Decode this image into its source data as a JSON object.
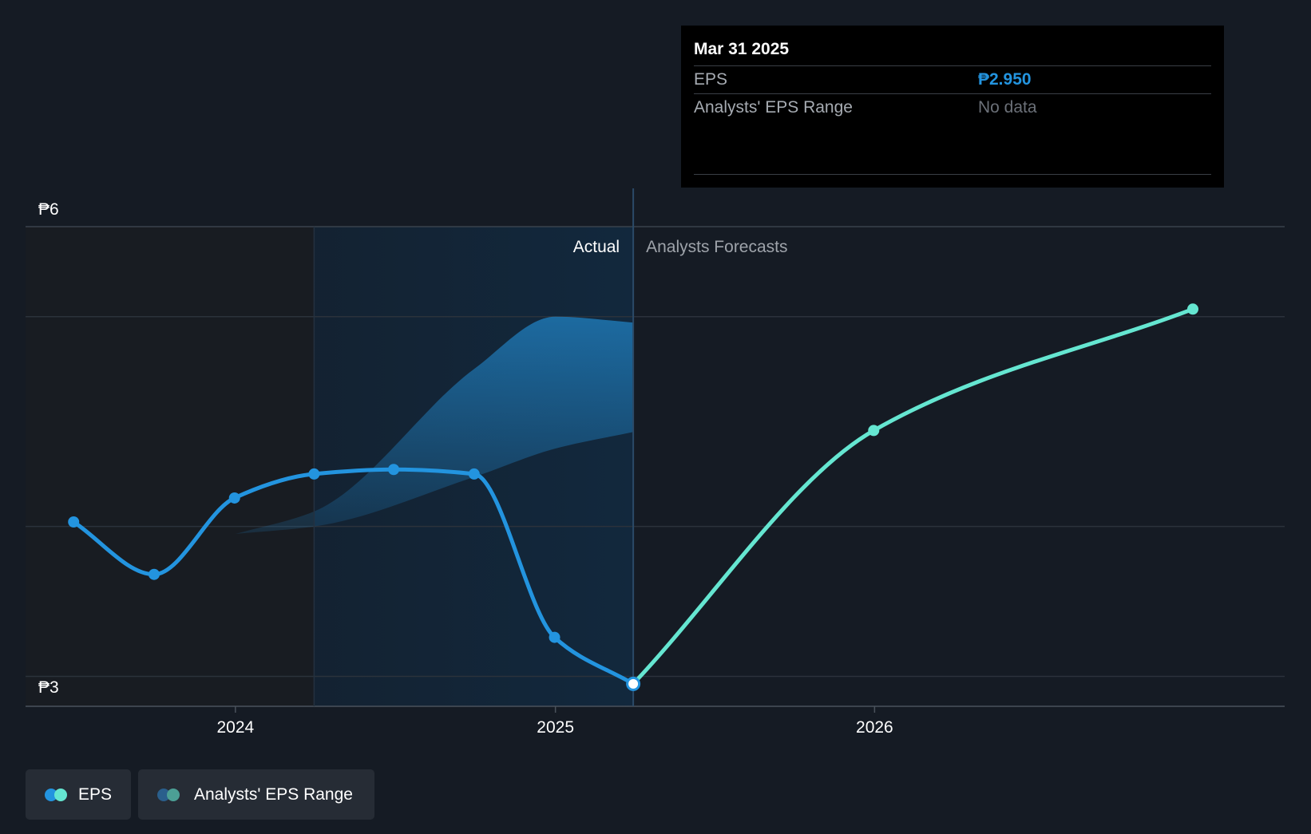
{
  "colors": {
    "background": "#151b24",
    "eps_actual": "#2394df",
    "eps_forecast": "#65e6d1",
    "range_fill": "#2394df",
    "grid": "#2b323b",
    "past_shade": "#12171e",
    "actual_shade": "#0f2234"
  },
  "tooltip": {
    "date": "Mar 31 2025",
    "rows": [
      {
        "label": "EPS",
        "value": "₱2.950"
      },
      {
        "label": "Analysts' EPS Range",
        "value": "No data"
      }
    ]
  },
  "regions": {
    "actual_label": "Actual",
    "forecast_label": "Analysts Forecasts"
  },
  "legend": [
    {
      "label": "EPS",
      "icon": "eps-legend-dots"
    },
    {
      "label": "Analysts' EPS Range",
      "icon": "range-legend-dots"
    }
  ],
  "chart_data": {
    "type": "line",
    "title": "",
    "xlabel": "",
    "ylabel": "",
    "y_ticks": [
      {
        "value": 6,
        "label": "₱6"
      },
      {
        "value": 3,
        "label": "₱3"
      }
    ],
    "x_ticks": [
      {
        "value": "2024-01-01",
        "label": "2024"
      },
      {
        "value": "2025-01-01",
        "label": "2025"
      },
      {
        "value": "2026-01-01",
        "label": "2026"
      }
    ],
    "xlim": [
      "2023-05-06",
      "2027-04-15"
    ],
    "ylim": [
      2.8,
      6.0
    ],
    "grid": true,
    "highlight_date": "2025-03-31",
    "actual_region_start": "2024-03-31",
    "series": [
      {
        "name": "EPS",
        "segment": "actual",
        "points": [
          {
            "x": "2023-06-30",
            "y": 4.03
          },
          {
            "x": "2023-09-30",
            "y": 3.68
          },
          {
            "x": "2023-12-31",
            "y": 4.19
          },
          {
            "x": "2024-03-31",
            "y": 4.35
          },
          {
            "x": "2024-06-30",
            "y": 4.38
          },
          {
            "x": "2024-09-30",
            "y": 4.35
          },
          {
            "x": "2024-12-31",
            "y": 3.26
          },
          {
            "x": "2025-03-31",
            "y": 2.95
          }
        ]
      },
      {
        "name": "EPS",
        "segment": "forecast",
        "points": [
          {
            "x": "2025-03-31",
            "y": 2.95
          },
          {
            "x": "2025-12-31",
            "y": 4.64
          },
          {
            "x": "2026-12-31",
            "y": 5.45
          }
        ]
      }
    ],
    "range_band": {
      "name": "Analysts' EPS Range",
      "upper": [
        {
          "x": "2024-01-01",
          "y": 3.95
        },
        {
          "x": "2024-03-31",
          "y": 4.1
        },
        {
          "x": "2024-09-30",
          "y": 5.05
        },
        {
          "x": "2025-01-01",
          "y": 5.4
        },
        {
          "x": "2025-03-31",
          "y": 5.36
        }
      ],
      "lower": [
        {
          "x": "2024-01-01",
          "y": 3.95
        },
        {
          "x": "2024-03-31",
          "y": 4.0
        },
        {
          "x": "2024-09-30",
          "y": 4.33
        },
        {
          "x": "2025-01-01",
          "y": 4.52
        },
        {
          "x": "2025-03-31",
          "y": 4.63
        }
      ]
    }
  }
}
